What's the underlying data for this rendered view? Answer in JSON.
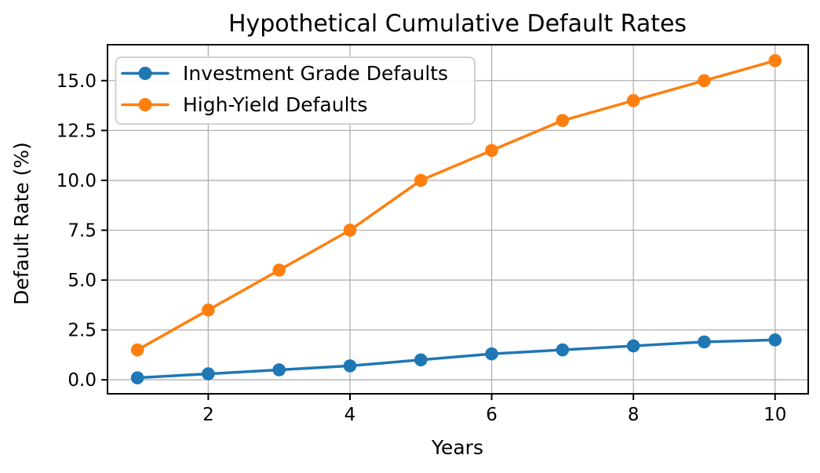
{
  "chart_data": {
    "type": "line",
    "title": "Hypothetical Cumulative Default Rates",
    "xlabel": "Years",
    "ylabel": "Default Rate (%)",
    "x": [
      1,
      2,
      3,
      4,
      5,
      6,
      7,
      8,
      9,
      10
    ],
    "series": [
      {
        "name": "Investment Grade Defaults",
        "color": "#1f77b4",
        "marker": "circle",
        "values": [
          0.1,
          0.3,
          0.5,
          0.7,
          1.0,
          1.3,
          1.5,
          1.7,
          1.9,
          2.0
        ]
      },
      {
        "name": "High-Yield Defaults",
        "color": "#ff7f0e",
        "marker": "circle",
        "values": [
          1.5,
          3.5,
          5.5,
          7.5,
          10.0,
          11.5,
          13.0,
          14.0,
          15.0,
          16.0
        ]
      }
    ],
    "xticks": {
      "values": [
        2,
        4,
        6,
        8,
        10
      ],
      "labels": [
        "2",
        "4",
        "6",
        "8",
        "10"
      ]
    },
    "yticks": {
      "values": [
        0,
        2.5,
        5,
        7.5,
        10,
        12.5,
        15
      ],
      "labels": [
        "0.0",
        "2.5",
        "5.0",
        "7.5",
        "10.0",
        "12.5",
        "15.0"
      ]
    },
    "xlim": [
      0.578,
      10.468
    ],
    "ylim": [
      -0.7,
      16.8
    ],
    "grid": true,
    "grid_color": "#b0b0b0",
    "axis_color": "#000000",
    "background_color": "#ffffff",
    "legend": {
      "position": "upper-left",
      "border_color": "#cccccc",
      "fill_color": "#ffffff"
    }
  }
}
